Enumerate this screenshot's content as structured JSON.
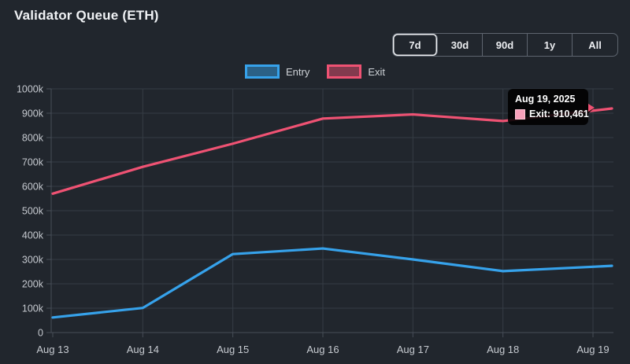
{
  "header": {
    "title": "Validator Queue (ETH)"
  },
  "range_buttons": [
    {
      "label": "7d",
      "active": true
    },
    {
      "label": "30d",
      "active": false
    },
    {
      "label": "90d",
      "active": false
    },
    {
      "label": "1y",
      "active": false
    },
    {
      "label": "All",
      "active": false
    }
  ],
  "legend": [
    {
      "label": "Entry",
      "color": "#36a2eb"
    },
    {
      "label": "Exit",
      "color": "#ef5273"
    }
  ],
  "tooltip": {
    "title": "Aug 19, 2025",
    "text": "Exit: 910,461",
    "swatch_fill": "#f8a0ba",
    "swatch_border": "#ffc7d7"
  },
  "chart_data": {
    "type": "line",
    "title": "Validator Queue (ETH)",
    "categories": [
      "Aug 13",
      "Aug 14",
      "Aug 15",
      "Aug 16",
      "Aug 17",
      "Aug 18",
      "Aug 19"
    ],
    "series": [
      {
        "name": "Entry",
        "color": "#36a2eb",
        "values": [
          62000,
          101000,
          322000,
          345000,
          300000,
          252000,
          270000
        ]
      },
      {
        "name": "Exit",
        "color": "#ef5273",
        "values": [
          570000,
          680000,
          775000,
          878000,
          895000,
          868000,
          910461
        ]
      }
    ],
    "ylim": [
      0,
      1000000
    ],
    "y_tick_labels": [
      "0",
      "100k",
      "200k",
      "300k",
      "400k",
      "500k",
      "600k",
      "700k",
      "800k",
      "900k",
      "1000k"
    ],
    "grid": true,
    "legend_position": "top",
    "highlighted_point": {
      "series": "Exit",
      "category": "Aug 19",
      "value": 910461
    }
  },
  "colors": {
    "background": "#21262d",
    "grid": "#353c45",
    "axis": "#474e58",
    "tick_label": "#c6cad0",
    "entry": "#36a2eb",
    "exit": "#ef5273"
  }
}
